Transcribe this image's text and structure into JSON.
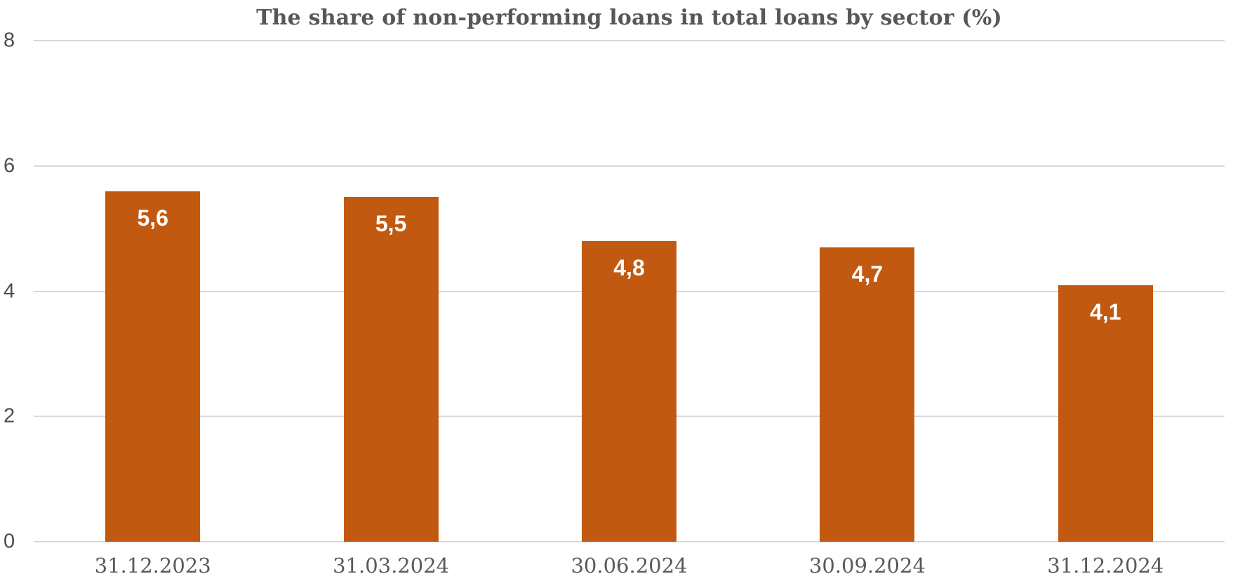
{
  "chart_data": {
    "type": "bar",
    "title": "The share of non-performing loans in total loans by sector (%)",
    "categories": [
      "31.12.2023",
      "31.03.2024",
      "30.06.2024",
      "30.09.2024",
      "31.12.2024"
    ],
    "values": [
      5.6,
      5.5,
      4.8,
      4.7,
      4.1
    ],
    "value_labels": [
      "5,6",
      "5,5",
      "4,8",
      "4,7",
      "4,1"
    ],
    "xlabel": "",
    "ylabel": "",
    "ylim": [
      0,
      8
    ],
    "yticks": [
      "0",
      "2",
      "4",
      "6",
      "8"
    ],
    "ytick_values": [
      0,
      2,
      4,
      6,
      8
    ],
    "grid": "horizontal",
    "legend": "none",
    "colors": {
      "bar": "#C25911",
      "bar_value_label": "#FFFFFF",
      "gridline": "#D9D9D9",
      "y_tick_text": "#4D4D4D",
      "x_tick_text": "#595959",
      "title_text": "#575757",
      "background": "#FFFFFF"
    }
  }
}
